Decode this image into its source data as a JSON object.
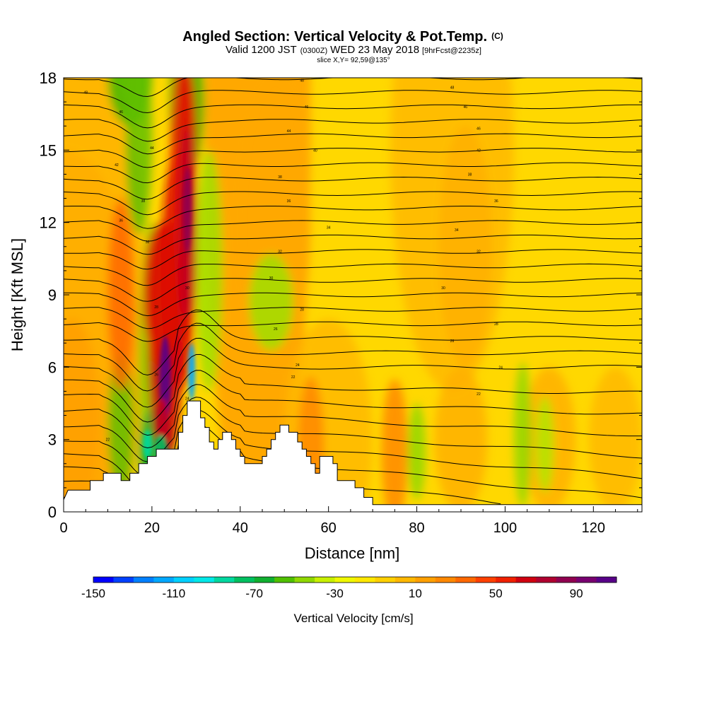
{
  "title": {
    "main": "Angled Section: Vertical Velocity & Pot.Temp.",
    "main_tag": "(C)",
    "valid_prefix": "Valid 1200 JST",
    "valid_small": "(0300Z)",
    "valid_date": "WED 23 May 2018",
    "valid_fcst": "[9hrFcst@2235z]",
    "slice": "slice X,Y= 92,59@135°"
  },
  "chart_data": {
    "type": "heatmap",
    "xlabel": "Distance [nm]",
    "ylabel": "Height [Kft MSL]",
    "xlim": [
      0,
      131
    ],
    "ylim": [
      0,
      18
    ],
    "x_ticks": [
      0,
      20,
      40,
      60,
      80,
      100,
      120
    ],
    "y_ticks": [
      0,
      3,
      6,
      9,
      12,
      15,
      18
    ],
    "colorbar": {
      "label": "Vertical Velocity [cm/s]",
      "range": [
        -150,
        110
      ],
      "ticks": [
        -150,
        -110,
        -70,
        -30,
        10,
        50,
        90
      ],
      "colors": [
        "#0000ff",
        "#0040ff",
        "#0080ff",
        "#00a8ff",
        "#00d0ff",
        "#00e8e8",
        "#00d8a0",
        "#00c060",
        "#10b030",
        "#50c000",
        "#90d800",
        "#c8f000",
        "#f0f800",
        "#ffe800",
        "#ffd000",
        "#ffb800",
        "#ffa000",
        "#ff8800",
        "#ff6800",
        "#ff4000",
        "#f02000",
        "#d00010",
        "#b00030",
        "#900050",
        "#780070",
        "#580088"
      ]
    },
    "isentrope_labels": [
      {
        "x": 5,
        "y": 17.4,
        "label": "48"
      },
      {
        "x": 13,
        "y": 16.6,
        "label": "46"
      },
      {
        "x": 20,
        "y": 15.1,
        "label": "44"
      },
      {
        "x": 12,
        "y": 14.4,
        "label": "42"
      },
      {
        "x": 18,
        "y": 12.9,
        "label": "38"
      },
      {
        "x": 13,
        "y": 12.1,
        "label": "36"
      },
      {
        "x": 19,
        "y": 11.2,
        "label": "32"
      },
      {
        "x": 28,
        "y": 9.3,
        "label": "30"
      },
      {
        "x": 21,
        "y": 8.5,
        "label": "28"
      },
      {
        "x": 21,
        "y": 5.7,
        "label": "26"
      },
      {
        "x": 28,
        "y": 4.7,
        "label": "24"
      },
      {
        "x": 10,
        "y": 3.0,
        "label": "22"
      },
      {
        "x": 54,
        "y": 17.9,
        "label": "48"
      },
      {
        "x": 55,
        "y": 16.8,
        "label": "46"
      },
      {
        "x": 51,
        "y": 15.8,
        "label": "44"
      },
      {
        "x": 57,
        "y": 15.0,
        "label": "40"
      },
      {
        "x": 49,
        "y": 13.9,
        "label": "38"
      },
      {
        "x": 51,
        "y": 12.9,
        "label": "36"
      },
      {
        "x": 60,
        "y": 11.8,
        "label": "34"
      },
      {
        "x": 49,
        "y": 10.8,
        "label": "32"
      },
      {
        "x": 47,
        "y": 9.7,
        "label": "30"
      },
      {
        "x": 54,
        "y": 8.4,
        "label": "28"
      },
      {
        "x": 48,
        "y": 7.6,
        "label": "26"
      },
      {
        "x": 53,
        "y": 6.1,
        "label": "24"
      },
      {
        "x": 52,
        "y": 5.6,
        "label": "22"
      },
      {
        "x": 88,
        "y": 17.6,
        "label": "48"
      },
      {
        "x": 91,
        "y": 16.8,
        "label": "46"
      },
      {
        "x": 94,
        "y": 15.9,
        "label": "46"
      },
      {
        "x": 94,
        "y": 15.0,
        "label": "42"
      },
      {
        "x": 92,
        "y": 14.0,
        "label": "38"
      },
      {
        "x": 98,
        "y": 12.9,
        "label": "36"
      },
      {
        "x": 89,
        "y": 11.7,
        "label": "34"
      },
      {
        "x": 94,
        "y": 10.8,
        "label": "32"
      },
      {
        "x": 86,
        "y": 9.3,
        "label": "30"
      },
      {
        "x": 98,
        "y": 7.8,
        "label": "28"
      },
      {
        "x": 88,
        "y": 7.1,
        "label": "26"
      },
      {
        "x": 99,
        "y": 6.0,
        "label": "24"
      },
      {
        "x": 94,
        "y": 4.9,
        "label": "22"
      }
    ],
    "terrain": [
      [
        0,
        0.5
      ],
      [
        1,
        0.9
      ],
      [
        6,
        0.9
      ],
      [
        6,
        1.3
      ],
      [
        9,
        1.3
      ],
      [
        9,
        1.6
      ],
      [
        13,
        1.6
      ],
      [
        13,
        1.3
      ],
      [
        15,
        1.3
      ],
      [
        15,
        1.6
      ],
      [
        17,
        1.6
      ],
      [
        17,
        2.0
      ],
      [
        19,
        2.0
      ],
      [
        19,
        2.3
      ],
      [
        21,
        2.3
      ],
      [
        21,
        2.6
      ],
      [
        26,
        2.6
      ],
      [
        26,
        3.3
      ],
      [
        27,
        3.3
      ],
      [
        27,
        4.0
      ],
      [
        28,
        4.0
      ],
      [
        28,
        4.6
      ],
      [
        31,
        4.6
      ],
      [
        31,
        3.9
      ],
      [
        32,
        3.9
      ],
      [
        32,
        3.5
      ],
      [
        33,
        3.5
      ],
      [
        33,
        2.9
      ],
      [
        34,
        2.9
      ],
      [
        34,
        2.6
      ],
      [
        35,
        2.6
      ],
      [
        35,
        3.0
      ],
      [
        36,
        3.0
      ],
      [
        36,
        3.3
      ],
      [
        38,
        3.3
      ],
      [
        38,
        3.0
      ],
      [
        39,
        3.0
      ],
      [
        39,
        2.6
      ],
      [
        40,
        2.6
      ],
      [
        40,
        2.3
      ],
      [
        41,
        2.3
      ],
      [
        41,
        2.0
      ],
      [
        45,
        2.0
      ],
      [
        45,
        2.3
      ],
      [
        46,
        2.3
      ],
      [
        46,
        2.6
      ],
      [
        47,
        2.6
      ],
      [
        47,
        3.0
      ],
      [
        48,
        3.0
      ],
      [
        48,
        3.3
      ],
      [
        49,
        3.3
      ],
      [
        49,
        3.6
      ],
      [
        51,
        3.6
      ],
      [
        51,
        3.3
      ],
      [
        53,
        3.3
      ],
      [
        53,
        2.9
      ],
      [
        54,
        2.9
      ],
      [
        54,
        2.6
      ],
      [
        55,
        2.6
      ],
      [
        55,
        2.3
      ],
      [
        56,
        2.3
      ],
      [
        56,
        2.0
      ],
      [
        57,
        2.0
      ],
      [
        57,
        1.6
      ],
      [
        58,
        1.6
      ],
      [
        58,
        2.3
      ],
      [
        61,
        2.3
      ],
      [
        61,
        2.0
      ],
      [
        62,
        2.0
      ],
      [
        62,
        1.3
      ],
      [
        66,
        1.3
      ],
      [
        66,
        1.0
      ],
      [
        68,
        1.0
      ],
      [
        68,
        0.6
      ],
      [
        70,
        0.6
      ],
      [
        70,
        0.3
      ],
      [
        131,
        0.3
      ]
    ]
  }
}
